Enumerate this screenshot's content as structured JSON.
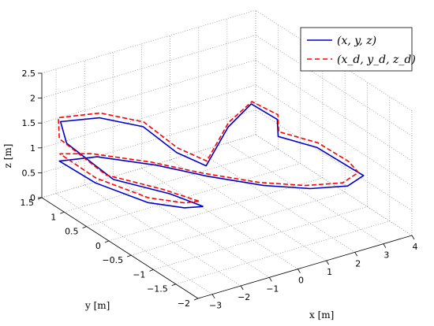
{
  "chart_data": {
    "type": "line",
    "projection": "3d",
    "grid": true,
    "legend_position": "top-right",
    "xlabel": "x [m]",
    "ylabel": "y [m]",
    "zlabel": "z [m]",
    "xlim": [
      -3.5,
      4
    ],
    "ylim": [
      -2,
      1.5
    ],
    "zlim": [
      0,
      2.5
    ],
    "x_ticks": [
      "−3",
      "−2",
      "−1",
      "0",
      "1",
      "2",
      "3",
      "4"
    ],
    "y_ticks": [
      "1.5",
      "1",
      "0.5",
      "0",
      "−0.5",
      "−1",
      "−1.5",
      "−2"
    ],
    "z_ticks": [
      "0",
      "0.5",
      "1",
      "1.5",
      "2",
      "2.5"
    ],
    "series": [
      {
        "name": "(x, y, z)",
        "color": "#0000cc",
        "style": "solid",
        "points": [
          [
            -0.5,
            -0.2,
            0.3
          ],
          [
            -1.2,
            0.1,
            0.5
          ],
          [
            -2.4,
            0.6,
            0.7
          ],
          [
            -3.1,
            1.2,
            1.2
          ],
          [
            -3.0,
            1.4,
            1.5
          ],
          [
            -2.1,
            1.1,
            1.6
          ],
          [
            -1.2,
            0.7,
            1.5
          ],
          [
            -0.8,
            0.2,
            1.2
          ],
          [
            -0.4,
            -0.2,
            1.1
          ],
          [
            -0.1,
            -0.5,
            2.0
          ],
          [
            0.4,
            -0.7,
            2.5
          ],
          [
            1.0,
            -0.9,
            2.2
          ],
          [
            1.5,
            -0.6,
            1.6
          ],
          [
            2.4,
            -0.9,
            1.4
          ],
          [
            3.0,
            -1.2,
            1.1
          ],
          [
            3.4,
            -1.3,
            0.9
          ],
          [
            3.0,
            -1.2,
            0.7
          ],
          [
            2.0,
            -1.0,
            0.7
          ],
          [
            1.0,
            -0.6,
            0.7
          ],
          [
            -0.2,
            -0.1,
            0.8
          ],
          [
            -1.2,
            0.4,
            0.9
          ],
          [
            -2.5,
            0.9,
            1.0
          ],
          [
            -3.2,
            1.3,
            0.8
          ],
          [
            -2.4,
            1.0,
            0.4
          ],
          [
            -1.5,
            0.4,
            0.2
          ],
          [
            -1.0,
            -0.1,
            0.3
          ],
          [
            -0.5,
            -0.2,
            0.3
          ]
        ]
      },
      {
        "name": "(x_d, y_d, z_d)",
        "color": "#ff0000",
        "style": "dashed",
        "points": [
          [
            -0.5,
            -0.1,
            0.35
          ],
          [
            -1.3,
            0.2,
            0.55
          ],
          [
            -2.5,
            0.7,
            0.75
          ],
          [
            -3.2,
            1.3,
            1.25
          ],
          [
            -3.0,
            1.45,
            1.55
          ],
          [
            -2.0,
            1.15,
            1.65
          ],
          [
            -1.1,
            0.75,
            1.55
          ],
          [
            -0.7,
            0.25,
            1.25
          ],
          [
            -0.3,
            -0.15,
            1.15
          ],
          [
            0.0,
            -0.45,
            2.05
          ],
          [
            0.5,
            -0.65,
            2.5
          ],
          [
            1.1,
            -0.85,
            2.25
          ],
          [
            1.6,
            -0.55,
            1.65
          ],
          [
            2.5,
            -0.85,
            1.45
          ],
          [
            3.1,
            -1.15,
            1.15
          ],
          [
            3.3,
            -1.25,
            0.95
          ],
          [
            2.9,
            -1.15,
            0.75
          ],
          [
            1.9,
            -0.95,
            0.75
          ],
          [
            0.9,
            -0.55,
            0.75
          ],
          [
            -0.3,
            -0.05,
            0.85
          ],
          [
            -1.3,
            0.45,
            0.95
          ],
          [
            -2.6,
            0.95,
            1.05
          ],
          [
            -3.1,
            1.35,
            0.9
          ],
          [
            -2.3,
            1.05,
            0.45
          ],
          [
            -1.4,
            0.45,
            0.25
          ],
          [
            -0.9,
            -0.05,
            0.35
          ],
          [
            -0.5,
            -0.1,
            0.35
          ]
        ]
      }
    ]
  }
}
